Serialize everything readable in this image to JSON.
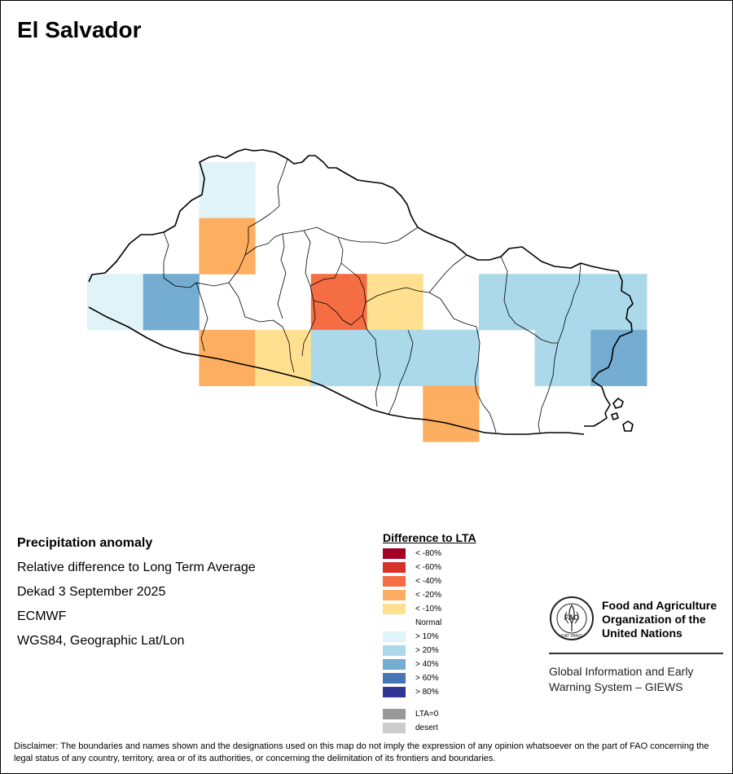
{
  "title": "El Salvador",
  "info": {
    "heading": "Precipitation anomaly",
    "subtitle": "Relative difference to Long Term Average",
    "period": "Dekad 3 September 2025",
    "source": "ECMWF",
    "projection": "WGS84, Geographic Lat/Lon"
  },
  "legend": {
    "title": "Difference to LTA",
    "classes": [
      {
        "label": "< -80%",
        "color": "#a50026"
      },
      {
        "label": "< -60%",
        "color": "#d73027"
      },
      {
        "label": "< -40%",
        "color": "#f46d43"
      },
      {
        "label": "< -20%",
        "color": "#fdae61"
      },
      {
        "label": "< -10%",
        "color": "#fee090"
      },
      {
        "label": "Normal",
        "color": "#ffffff"
      },
      {
        "label": "> 10%",
        "color": "#e0f3f8"
      },
      {
        "label": "> 20%",
        "color": "#abd9e9"
      },
      {
        "label": "> 40%",
        "color": "#74add1"
      },
      {
        "label": "> 60%",
        "color": "#4575b4"
      },
      {
        "label": "> 80%",
        "color": "#313695"
      }
    ],
    "extra": [
      {
        "label": "LTA=0",
        "color": "#999999"
      },
      {
        "label": "desert",
        "color": "#cccccc"
      }
    ]
  },
  "grid_cells": [
    {
      "col": 2,
      "row": 0,
      "class": "> 10%"
    },
    {
      "col": 2,
      "row": 1,
      "class": "< -20%"
    },
    {
      "col": 0,
      "row": 2,
      "class": "> 10%"
    },
    {
      "col": 1,
      "row": 2,
      "class": "> 40%"
    },
    {
      "col": 4,
      "row": 2,
      "class": "< -40%"
    },
    {
      "col": 5,
      "row": 2,
      "class": "< -10%"
    },
    {
      "col": 7,
      "row": 2,
      "class": "> 20%"
    },
    {
      "col": 8,
      "row": 2,
      "class": "> 20%"
    },
    {
      "col": 9,
      "row": 2,
      "class": "> 20%"
    },
    {
      "col": 2,
      "row": 3,
      "class": "< -20%"
    },
    {
      "col": 3,
      "row": 3,
      "class": "< -10%"
    },
    {
      "col": 4,
      "row": 3,
      "class": "> 20%"
    },
    {
      "col": 5,
      "row": 3,
      "class": "> 20%"
    },
    {
      "col": 6,
      "row": 3,
      "class": "> 20%"
    },
    {
      "col": 8,
      "row": 3,
      "class": "> 20%"
    },
    {
      "col": 9,
      "row": 3,
      "class": "> 40%"
    },
    {
      "col": 6,
      "row": 4,
      "class": "< -20%"
    }
  ],
  "fao": {
    "name_line1": "Food and Agriculture",
    "name_line2": "Organization of the",
    "name_line3": "United Nations",
    "logo_text": "FAO",
    "logo_motto": "FIAT PANIS",
    "giews_line1": "Global Information and Early",
    "giews_line2": "Warning System – GIEWS"
  },
  "disclaimer": "Disclaimer: The boundaries and names shown and the designations used on this map do not imply the expression of any opinion whatsoever on the part of FAO concerning the legal status of any country, territory, area or of its authorities, or concerning the delimitation of its frontiers and boundaries."
}
